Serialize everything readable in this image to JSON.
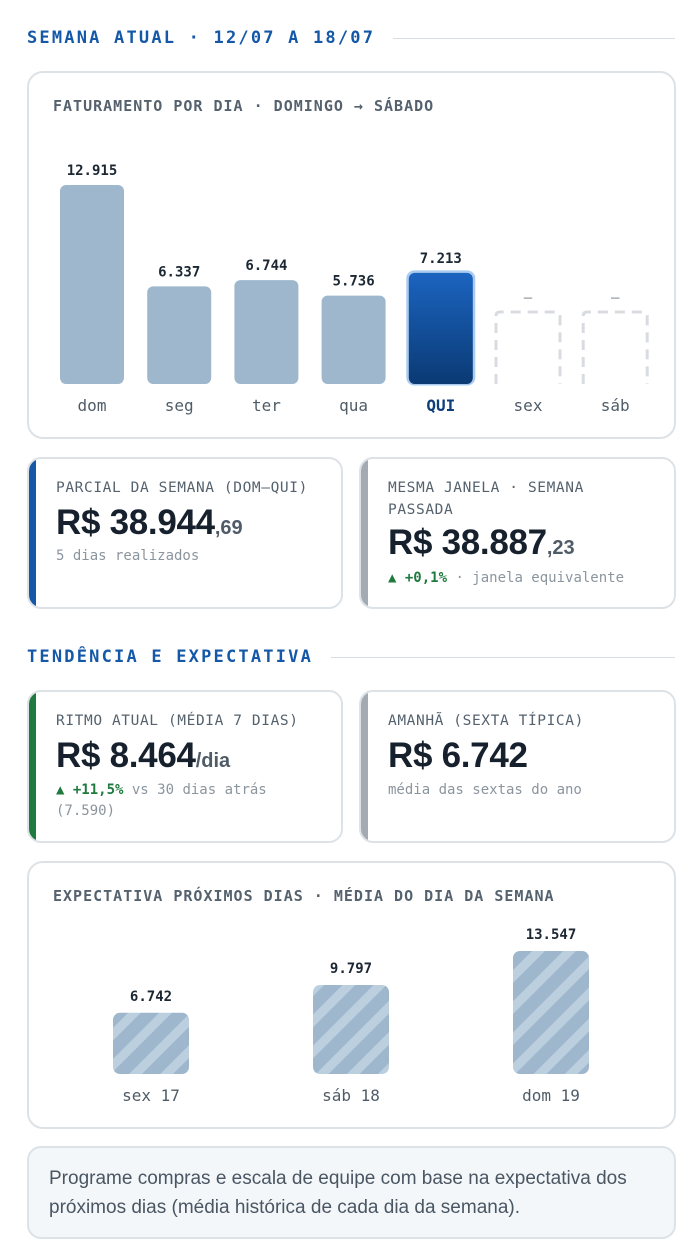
{
  "section_week": "SEMANA ATUAL · 12/07 A 18/07",
  "section_trend": "TENDÊNCIA E EXPECTATIVA",
  "chart_data": [
    {
      "type": "bar",
      "title": "FATURAMENTO POR DIA · DOMINGO → SÁBADO",
      "categories": [
        "dom",
        "seg",
        "ter",
        "qua",
        "QUI",
        "sex",
        "sáb"
      ],
      "values": [
        12915,
        6337,
        6744,
        5736,
        7213,
        null,
        null
      ],
      "labels": [
        "12.915",
        "6.337",
        "6.744",
        "5.736",
        "7.213",
        "–",
        "–"
      ],
      "highlight_index": 4,
      "colors": {
        "bar": "#9fb7cd",
        "highlight_top": "#1b64c0",
        "highlight_bottom": "#0b3a74",
        "placeholder": "#d8dce0"
      }
    },
    {
      "type": "bar",
      "title": "EXPECTATIVA PRÓXIMOS DIAS · MÉDIA DO DIA DA SEMANA",
      "categories": [
        "sex 17",
        "sáb 18",
        "dom 19"
      ],
      "values": [
        6742,
        9797,
        13547
      ],
      "labels": [
        "6.742",
        "9.797",
        "13.547"
      ],
      "colors": {
        "bar": "#9fb7cd",
        "stripe": "#bccfdf"
      }
    }
  ],
  "kpis": {
    "partial": {
      "label": "PARCIAL DA SEMANA (DOM–QUI)",
      "currency": "R$",
      "main": "38.944",
      "cents": ",69",
      "sub": "5 dias realizados",
      "accent": "#1558a8"
    },
    "last_week": {
      "label": "MESMA JANELA · SEMANA PASSADA",
      "currency": "R$",
      "main": "38.887",
      "cents": ",23",
      "delta": "▲ +0,1%",
      "sub": " · janela equivalente",
      "accent": "#a3aab1"
    },
    "rhythm": {
      "label": "RITMO ATUAL (MÉDIA 7 DIAS)",
      "currency": "R$",
      "main": "8.464",
      "unit": "/dia",
      "delta": "▲ +11,5%",
      "sub": " vs 30 dias atrás (7.590)",
      "accent": "#1f7a3e"
    },
    "tomorrow": {
      "label": "AMANHÃ (SEXTA TÍPICA)",
      "currency": "R$",
      "main": "6.742",
      "sub": "média das sextas do ano",
      "accent": "#a3aab1"
    }
  },
  "note": "Programe compras e escala de equipe com base na expectativa dos próximos dias (média histórica de cada dia da semana)."
}
